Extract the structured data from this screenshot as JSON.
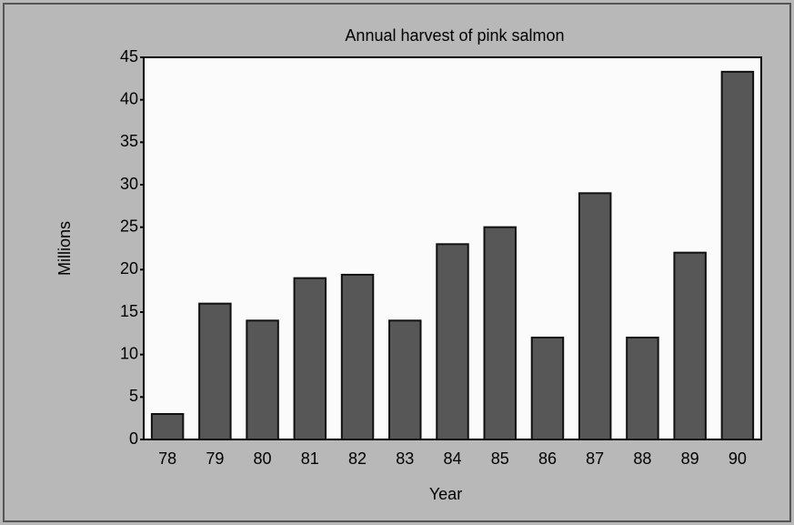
{
  "chart_data": {
    "type": "bar",
    "title": "Annual harvest of pink salmon",
    "y_label": "Millions",
    "x_label": "Year",
    "categories": [
      "78",
      "79",
      "80",
      "81",
      "82",
      "83",
      "84",
      "85",
      "86",
      "87",
      "88",
      "89",
      "90"
    ],
    "values": [
      3,
      16,
      14,
      19,
      19.4,
      14,
      23,
      25,
      12,
      29,
      12,
      22,
      43.3
    ],
    "color": "#575757",
    "ylim": [
      0,
      45
    ],
    "yticks": [
      0,
      5,
      10,
      15,
      20,
      25,
      30,
      35,
      40,
      45
    ],
    "grid": false
  }
}
